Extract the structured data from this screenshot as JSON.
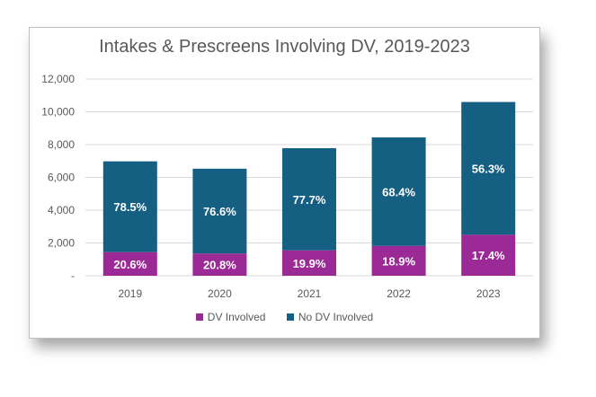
{
  "chart_data": {
    "type": "bar",
    "stacked": true,
    "title": "Intakes & Prescreens Involving DV, 2019-2023",
    "xlabel": "",
    "ylabel": "",
    "categories": [
      "2019",
      "2020",
      "2021",
      "2022",
      "2023"
    ],
    "ylim": [
      0,
      12000
    ],
    "yticks": [
      0,
      2000,
      4000,
      6000,
      8000,
      10000,
      12000
    ],
    "ytick_labels": [
      "-",
      "2,000",
      "4,000",
      "6,000",
      "8,000",
      "10,000",
      "12,000"
    ],
    "grid": true,
    "legend_position": "bottom",
    "series": [
      {
        "name": "DV Involved",
        "color": "#9b2a97",
        "values": [
          1440,
          1360,
          1550,
          1820,
          2500
        ],
        "labels": [
          "20.6%",
          "20.8%",
          "19.9%",
          "18.9%",
          "17.4%"
        ]
      },
      {
        "name": "No DV Involved",
        "color": "#145f82",
        "values": [
          5540,
          5170,
          6230,
          6620,
          8100
        ],
        "labels": [
          "78.5%",
          "76.6%",
          "77.7%",
          "68.4%",
          "56.3%"
        ]
      }
    ]
  }
}
